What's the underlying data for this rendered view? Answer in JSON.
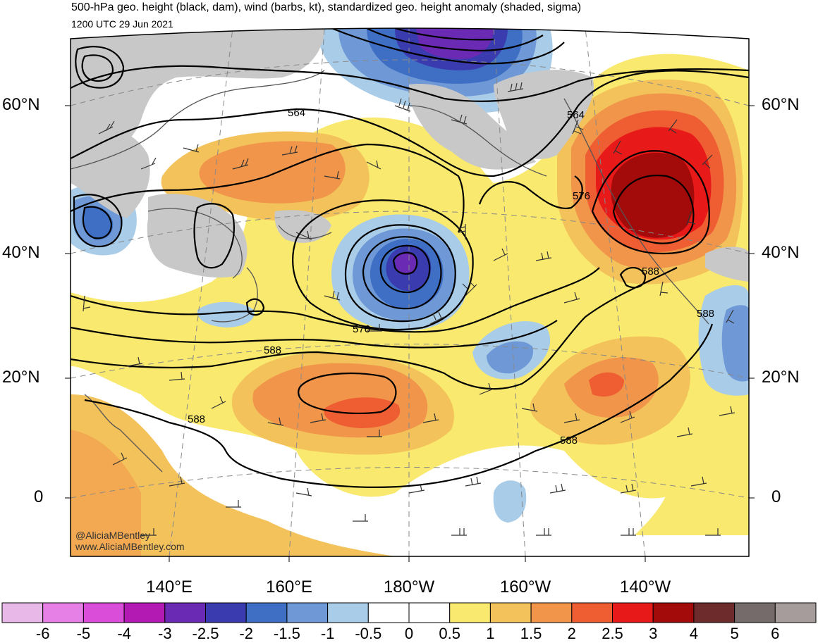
{
  "title": "500-hPa geo. height (black, dam), wind (barbs, kt), standardized geo. height anomaly (shaded, sigma)",
  "subtitle": "1200 UTC 29 Jun 2021",
  "credit_handle": "@AliciaMBentley",
  "credit_site": "www.AliciaMBentley.com",
  "lat_labels_left": [
    "60°N",
    "40°N",
    "20°N",
    "0"
  ],
  "lat_labels_right": [
    "60°N",
    "40°N",
    "20°N",
    "0"
  ],
  "lon_labels": [
    "140°E",
    "160°E",
    "180°W",
    "160°W",
    "140°W"
  ],
  "contour_labels": [
    "564",
    "564",
    "576",
    "576",
    "588",
    "588",
    "588",
    "588",
    "588"
  ],
  "colorbar": {
    "colors": [
      "#e8b8e8",
      "#e67fe6",
      "#d94dd9",
      "#b31ab3",
      "#6a2ab3",
      "#3b3bb0",
      "#3f6fc4",
      "#6f99d6",
      "#a9cce8",
      "#ffffff",
      "#ffffff",
      "#f9e96e",
      "#f3c25a",
      "#f0954a",
      "#ef5e32",
      "#e81919",
      "#a30a0a",
      "#6e2b2b",
      "#756b6b",
      "#a79c9c"
    ],
    "labels": [
      "-6",
      "-5",
      "-4",
      "-3",
      "-2.5",
      "-2",
      "-1.5",
      "-1",
      "-0.5",
      "0",
      "0.5",
      "1",
      "1.5",
      "2",
      "2.5",
      "3",
      "4",
      "5",
      "6"
    ]
  }
}
